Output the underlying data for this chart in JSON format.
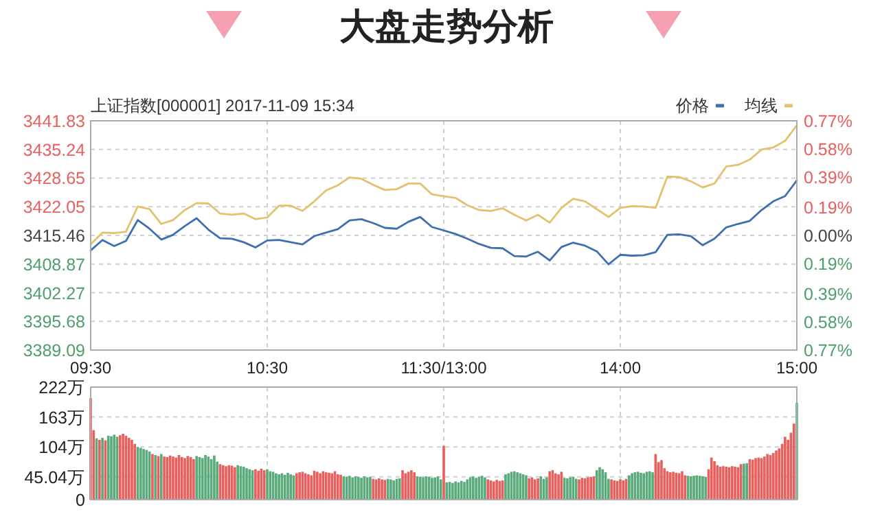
{
  "chart_data": [
    {
      "type": "line",
      "title": "大盘走势分析",
      "subtitle": "上证指数[000001] 2017-11-09 15:34",
      "legend": "top right",
      "grid": true,
      "categories": [
        "09:30",
        null,
        null,
        null,
        null,
        null,
        null,
        null,
        null,
        null,
        null,
        null,
        null,
        null,
        null,
        "10:30",
        null,
        null,
        null,
        null,
        null,
        null,
        null,
        null,
        null,
        null,
        null,
        null,
        null,
        null,
        "11:30/13:00",
        null,
        null,
        null,
        null,
        null,
        null,
        null,
        null,
        null,
        null,
        null,
        null,
        null,
        null,
        "14:00",
        null,
        null,
        null,
        null,
        null,
        null,
        null,
        null,
        null,
        null,
        null,
        null,
        null,
        null,
        "15:00"
      ],
      "ylim": [
        3389.09,
        3441.83
      ],
      "yticks": [
        3389.09,
        3395.68,
        3402.27,
        3408.87,
        3415.46,
        3422.05,
        3428.65,
        3435.24,
        3441.83
      ],
      "y2lim": [
        -0.77,
        0.77
      ],
      "y2ticks": [
        {
          "value": -0.77,
          "label": "0.77%"
        },
        {
          "value": -0.58,
          "label": "0.58%"
        },
        {
          "value": -0.39,
          "label": "0.39%"
        },
        {
          "value": -0.19,
          "label": "0.19%"
        },
        {
          "value": 0,
          "label": "0.00%"
        },
        {
          "value": 0.19,
          "label": "0.19%"
        },
        {
          "value": 0.39,
          "label": "0.39%"
        },
        {
          "value": 0.58,
          "label": "0.58%"
        },
        {
          "value": 0.77,
          "label": "0.77%"
        }
      ],
      "series": [
        {
          "name": "价格",
          "color": "#3e6fb0",
          "values": [
            3412.0,
            3414.4,
            3413.0,
            3414.2,
            3419.0,
            3417.0,
            3414.5,
            3415.6,
            3417.6,
            3419.4,
            3416.8,
            3414.8,
            3414.7,
            3413.9,
            3412.7,
            3414.3,
            3414.4,
            3413.9,
            3413.4,
            3415.3,
            3416.1,
            3416.9,
            3418.9,
            3419.2,
            3418.3,
            3417.2,
            3417.0,
            3418.6,
            3419.7,
            3417.4,
            3416.6,
            3415.8,
            3414.7,
            3413.5,
            3412.6,
            3412.5,
            3410.7,
            3410.6,
            3411.7,
            3409.7,
            3412.8,
            3413.8,
            3413.1,
            3411.8,
            3408.8,
            3411.0,
            3410.8,
            3410.9,
            3411.6,
            3415.6,
            3415.7,
            3415.3,
            3413.2,
            3414.7,
            3417.3,
            3418.1,
            3418.8,
            3421.3,
            3423.3,
            3424.5,
            3428.1
          ]
        },
        {
          "name": "均线",
          "color": "#e3c16f",
          "values": [
            3413.4,
            3416.1,
            3416.0,
            3416.3,
            3422.1,
            3421.5,
            3418.1,
            3419.0,
            3421.3,
            3422.9,
            3422.8,
            3420.5,
            3420.2,
            3420.5,
            3419.2,
            3419.6,
            3422.3,
            3422.3,
            3421.1,
            3423.3,
            3425.8,
            3427.0,
            3428.8,
            3428.5,
            3427.1,
            3425.9,
            3426.1,
            3427.4,
            3427.4,
            3424.9,
            3424.5,
            3424.1,
            3422.4,
            3421.3,
            3421.1,
            3421.7,
            3420.2,
            3418.9,
            3420.2,
            3418.4,
            3421.8,
            3423.9,
            3423.3,
            3421.5,
            3419.7,
            3421.8,
            3422.2,
            3422.1,
            3421.8,
            3429.0,
            3428.9,
            3427.9,
            3426.5,
            3427.4,
            3431.3,
            3431.7,
            3432.9,
            3435.2,
            3435.7,
            3437.2,
            3440.8
          ]
        }
      ]
    },
    {
      "type": "bar",
      "grid": true,
      "tick_labels": "y",
      "categories": [
        null,
        null,
        null,
        null,
        null,
        null,
        null,
        null,
        null,
        null,
        null,
        null,
        null,
        null,
        null,
        null,
        null,
        null,
        null,
        null,
        null,
        null,
        null,
        null,
        null,
        null,
        null,
        null,
        null,
        null,
        null,
        null,
        null,
        null,
        null,
        null,
        null,
        null,
        null,
        null,
        null,
        null,
        null,
        null,
        null,
        null,
        null,
        null,
        null,
        null,
        null,
        null,
        null,
        null,
        null,
        null,
        null,
        null,
        null,
        null,
        null,
        null,
        null,
        null,
        null,
        null,
        null,
        null,
        null,
        null,
        null,
        null,
        null,
        null,
        null,
        null,
        null,
        null,
        null,
        null,
        null,
        null,
        null,
        null,
        null,
        null,
        null,
        null,
        null,
        null,
        null,
        null,
        null,
        null,
        null,
        null,
        null,
        null,
        null,
        null,
        null,
        null,
        null,
        null,
        null,
        null,
        null,
        null,
        null,
        null,
        null,
        null,
        null,
        null,
        null,
        null,
        null,
        null,
        null,
        null,
        null,
        null,
        null,
        null,
        null,
        null,
        null,
        null,
        null,
        null,
        null,
        null,
        null,
        null,
        null,
        null,
        null,
        null,
        null,
        null,
        null,
        null,
        null,
        null,
        null,
        null,
        null,
        null,
        null,
        null,
        null,
        null,
        null,
        null,
        null,
        null,
        null,
        null,
        null,
        null,
        null,
        null,
        null,
        null,
        null,
        null,
        null,
        null,
        null,
        null,
        null,
        null,
        null,
        null,
        null,
        null,
        null,
        null,
        null,
        null,
        null,
        null,
        null,
        null,
        null,
        null,
        null,
        null,
        null,
        null,
        null,
        null,
        null,
        null,
        null,
        null,
        null,
        null,
        null,
        null,
        null,
        null,
        null,
        null,
        null,
        null,
        null,
        null,
        null,
        null,
        null,
        null,
        null,
        null,
        null,
        null,
        null,
        null,
        null,
        null,
        null,
        null,
        null,
        null,
        null,
        null,
        null,
        null,
        null,
        null,
        null,
        null,
        null,
        null,
        null,
        null,
        null,
        null,
        null,
        null,
        null
      ],
      "ylim": [
        0,
        222
      ],
      "yticks": [
        0,
        {
          "value": 45.04,
          "label": "45.04万"
        },
        {
          "value": 104,
          "label": "104万"
        },
        {
          "value": 163,
          "label": "163万"
        },
        {
          "value": 222,
          "label": "222万"
        }
      ],
      "values": [
        200,
        137,
        121,
        118,
        122,
        117,
        126,
        125,
        128,
        124,
        127,
        130,
        126,
        122,
        118,
        110,
        104,
        102,
        100,
        98,
        95,
        90,
        88,
        86,
        90,
        85,
        84,
        87,
        85,
        83,
        88,
        84,
        82,
        86,
        84,
        80,
        86,
        84,
        82,
        88,
        85,
        80,
        87,
        75,
        70,
        68,
        66,
        68,
        67,
        64,
        68,
        66,
        65,
        62,
        60,
        58,
        60,
        57,
        61,
        58,
        60,
        56,
        55,
        52,
        50,
        52,
        49,
        53,
        50,
        48,
        52,
        54,
        55,
        52,
        50,
        48,
        57,
        55,
        52,
        56,
        54,
        53,
        52,
        56,
        50,
        49,
        46,
        45,
        47,
        44,
        46,
        45,
        43,
        46,
        44,
        45,
        41,
        40,
        42,
        40,
        39,
        41,
        40,
        38,
        41,
        42,
        58,
        52,
        55,
        58,
        54,
        46,
        45,
        44,
        46,
        45,
        43,
        44,
        46,
        40,
        106,
        34,
        35,
        33,
        36,
        34,
        37,
        35,
        40,
        44,
        46,
        43,
        45,
        47,
        44,
        40,
        38,
        36,
        39,
        37,
        38,
        50,
        52,
        55,
        56,
        54,
        52,
        50,
        48,
        42,
        44,
        40,
        42,
        46,
        41,
        44,
        56,
        58,
        52,
        50,
        55,
        43,
        42,
        44,
        45,
        41,
        40,
        43,
        42,
        44,
        45,
        46,
        58,
        64,
        60,
        54,
        41,
        40,
        38,
        37,
        40,
        38,
        41,
        48,
        52,
        54,
        55,
        53,
        52,
        55,
        56,
        54,
        90,
        74,
        78,
        62,
        56,
        54,
        55,
        53,
        52,
        56,
        48,
        47,
        46,
        47,
        48,
        47,
        46,
        45,
        60,
        83,
        76,
        68,
        65,
        66,
        65,
        64,
        66,
        65,
        64,
        70,
        71,
        72,
        80,
        79,
        82,
        83,
        82,
        85,
        90,
        88,
        92,
        97,
        101,
        110,
        124,
        118,
        132,
        150,
        191
      ],
      "colors": [
        "#e8605e",
        "#e8605e",
        "#5aaa7c",
        "#e8605e",
        "#5aaa7c",
        "#e8605e",
        "#5aaa7c",
        "#5aaa7c",
        "#5aaa7c",
        "#5aaa7c",
        "#e8605e",
        "#e8605e",
        "#e8605e",
        "#e8605e",
        "#e8605e",
        "#e8605e",
        "#5aaa7c",
        "#5aaa7c",
        "#5aaa7c",
        "#5aaa7c",
        "#5aaa7c",
        "#e8605e",
        "#5aaa7c",
        "#e8605e",
        "#5aaa7c",
        "#e8605e",
        "#e8605e",
        "#e8605e",
        "#e8605e",
        "#e8605e",
        "#e8605e",
        "#e8605e",
        "#e8605e",
        "#e8605e",
        "#e8605e",
        "#e8605e",
        "#5aaa7c",
        "#5aaa7c",
        "#5aaa7c",
        "#5aaa7c",
        "#5aaa7c",
        "#5aaa7c",
        "#5aaa7c",
        "#5aaa7c",
        "#e8605e",
        "#e8605e",
        "#e8605e",
        "#e8605e",
        "#e8605e",
        "#e8605e",
        "#5aaa7c",
        "#5aaa7c",
        "#5aaa7c",
        "#5aaa7c",
        "#5aaa7c",
        "#5aaa7c",
        "#e8605e",
        "#e8605e",
        "#e8605e",
        "#e8605e",
        "#5aaa7c",
        "#5aaa7c",
        "#5aaa7c",
        "#5aaa7c",
        "#5aaa7c",
        "#5aaa7c",
        "#5aaa7c",
        "#5aaa7c",
        "#5aaa7c",
        "#5aaa7c",
        "#e8605e",
        "#e8605e",
        "#e8605e",
        "#e8605e",
        "#e8605e",
        "#e8605e",
        "#e8605e",
        "#e8605e",
        "#e8605e",
        "#e8605e",
        "#e8605e",
        "#e8605e",
        "#e8605e",
        "#e8605e",
        "#e8605e",
        "#e8605e",
        "#5aaa7c",
        "#5aaa7c",
        "#5aaa7c",
        "#5aaa7c",
        "#5aaa7c",
        "#5aaa7c",
        "#5aaa7c",
        "#5aaa7c",
        "#5aaa7c",
        "#5aaa7c",
        "#e8605e",
        "#e8605e",
        "#e8605e",
        "#e8605e",
        "#e8605e",
        "#5aaa7c",
        "#5aaa7c",
        "#5aaa7c",
        "#5aaa7c",
        "#5aaa7c",
        "#e8605e",
        "#e8605e",
        "#e8605e",
        "#e8605e",
        "#e8605e",
        "#5aaa7c",
        "#5aaa7c",
        "#5aaa7c",
        "#5aaa7c",
        "#5aaa7c",
        "#5aaa7c",
        "#5aaa7c",
        "#5aaa7c",
        "#5aaa7c",
        "#e8605e",
        "#5aaa7c",
        "#5aaa7c",
        "#5aaa7c",
        "#5aaa7c",
        "#5aaa7c",
        "#5aaa7c",
        "#5aaa7c",
        "#5aaa7c",
        "#5aaa7c",
        "#5aaa7c",
        "#5aaa7c",
        "#5aaa7c",
        "#5aaa7c",
        "#5aaa7c",
        "#e8605e",
        "#e8605e",
        "#e8605e",
        "#e8605e",
        "#e8605e",
        "#e8605e",
        "#5aaa7c",
        "#5aaa7c",
        "#5aaa7c",
        "#5aaa7c",
        "#5aaa7c",
        "#5aaa7c",
        "#5aaa7c",
        "#5aaa7c",
        "#e8605e",
        "#e8605e",
        "#e8605e",
        "#e8605e",
        "#5aaa7c",
        "#5aaa7c",
        "#5aaa7c",
        "#e8605e",
        "#e8605e",
        "#e8605e",
        "#e8605e",
        "#e8605e",
        "#5aaa7c",
        "#5aaa7c",
        "#5aaa7c",
        "#5aaa7c",
        "#5aaa7c",
        "#e8605e",
        "#e8605e",
        "#e8605e",
        "#e8605e",
        "#e8605e",
        "#e8605e",
        "#5aaa7c",
        "#5aaa7c",
        "#5aaa7c",
        "#5aaa7c",
        "#5aaa7c",
        "#e8605e",
        "#e8605e",
        "#e8605e",
        "#e8605e",
        "#e8605e",
        "#e8605e",
        "#5aaa7c",
        "#5aaa7c",
        "#5aaa7c",
        "#5aaa7c",
        "#5aaa7c",
        "#5aaa7c",
        "#5aaa7c",
        "#5aaa7c",
        "#5aaa7c",
        "#e8605e",
        "#e8605e",
        "#e8605e",
        "#e8605e",
        "#e8605e",
        "#e8605e",
        "#e8605e",
        "#e8605e",
        "#e8605e",
        "#e8605e",
        "#e8605e",
        "#5aaa7c",
        "#5aaa7c",
        "#5aaa7c",
        "#5aaa7c",
        "#5aaa7c",
        "#5aaa7c",
        "#5aaa7c",
        "#e8605e",
        "#e8605e",
        "#e8605e",
        "#e8605e",
        "#e8605e",
        "#e8605e",
        "#e8605e",
        "#e8605e",
        "#e8605e",
        "#e8605e",
        "#e8605e",
        "#e8605e",
        "#5aaa7c",
        "#5aaa7c",
        "#e8605e",
        "#e8605e",
        "#e8605e",
        "#e8605e",
        "#e8605e",
        "#e8605e",
        "#e8605e",
        "#e8605e",
        "#e8605e",
        "#e8605e",
        "#e8605e",
        "#e8605e",
        "#e8605e",
        "#e8605e",
        "#e8605e",
        "#e8605e",
        "#5aaa7c"
      ]
    }
  ]
}
